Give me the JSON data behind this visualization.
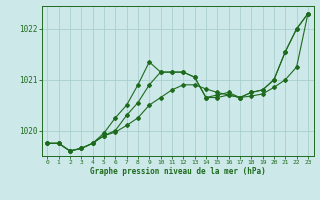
{
  "title": "Graphe pression niveau de la mer (hPa)",
  "xlabel": "Graphe pression niveau de la mer (hPa)",
  "x": [
    0,
    1,
    2,
    3,
    4,
    5,
    6,
    7,
    8,
    9,
    10,
    11,
    12,
    13,
    14,
    15,
    16,
    17,
    18,
    19,
    20,
    21,
    22,
    23
  ],
  "line1": [
    1019.75,
    1019.75,
    1019.6,
    1019.65,
    1019.75,
    1019.9,
    1020.0,
    1020.3,
    1020.55,
    1020.9,
    1021.15,
    1021.15,
    1021.15,
    1021.05,
    1020.65,
    1020.7,
    1020.75,
    1020.65,
    1020.75,
    1020.8,
    1021.0,
    1021.55,
    1022.0,
    1022.3
  ],
  "line2": [
    1019.75,
    1019.75,
    1019.6,
    1019.65,
    1019.75,
    1019.95,
    1020.25,
    1020.5,
    1020.9,
    1021.35,
    1021.15,
    1021.15,
    1021.15,
    1021.05,
    1020.65,
    1020.65,
    1020.7,
    1020.65,
    1020.75,
    1020.8,
    1021.0,
    1021.55,
    1022.0,
    1022.3
  ],
  "line3": [
    1019.75,
    1019.75,
    1019.6,
    1019.65,
    1019.75,
    1019.9,
    1019.97,
    1020.1,
    1020.25,
    1020.5,
    1020.65,
    1020.8,
    1020.9,
    1020.9,
    1020.82,
    1020.75,
    1020.7,
    1020.65,
    1020.68,
    1020.72,
    1020.85,
    1021.0,
    1021.25,
    1022.3
  ],
  "line_color": "#1e6b1e",
  "bg_color": "#cce8e8",
  "grid_color": "#aacece",
  "ylim": [
    1019.5,
    1022.45
  ],
  "yticks": [
    1020,
    1021,
    1022
  ],
  "xticks": [
    0,
    1,
    2,
    3,
    4,
    5,
    6,
    7,
    8,
    9,
    10,
    11,
    12,
    13,
    14,
    15,
    16,
    17,
    18,
    19,
    20,
    21,
    22,
    23
  ]
}
